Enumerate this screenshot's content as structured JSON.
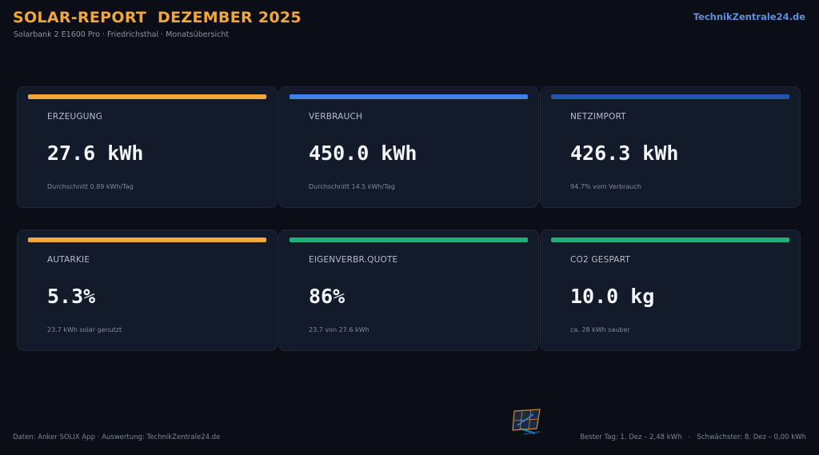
{
  "header": {
    "title": "SOLAR-REPORT  DEZEMBER 2025",
    "subtitle": "Solarbank 2 E1600 Pro · Friedrichsthal · Monatsübersicht",
    "brand": "TechnikZentrale24.de"
  },
  "cards": [
    {
      "label": "ERZEUGUNG",
      "value": "27.6 kWh",
      "note": "Durchschnitt 0.89 kWh/Tag",
      "accent": "#f2a73b"
    },
    {
      "label": "VERBRAUCH",
      "value": "450.0 kWh",
      "note": "Durchschnitt 14.5 kWh/Tag",
      "accent": "#3d82e6"
    },
    {
      "label": "NETZIMPORT",
      "value": "426.3 kWh",
      "note": "94.7% vom Verbrauch",
      "accent": "#2255b0"
    },
    {
      "label": "AUTARKIE",
      "value": "5.3%",
      "note": "23.7 kWh solar genutzt",
      "accent": "#f2a73b"
    },
    {
      "label": "EIGENVERBR.QUOTE",
      "value": "86%",
      "note": "23.7 von 27.6 kWh",
      "accent": "#1fb07a"
    },
    {
      "label": "CO2 GESPART",
      "value": "10.0 kg",
      "note": "ca. 28 kWh sauber",
      "accent": "#1fb07a"
    }
  ],
  "footer": {
    "source": "Daten: Anker SOLIX App · Auswertung: TechnikZentrale24.de",
    "stats": "Bester Tag: 1. Dez – 2,48 kWh   ·   Schwächster: 8. Dez – 0,00 kWh"
  },
  "colors": {
    "background": "#0b0e17",
    "card": "#131a2a",
    "title": "#f2a73b",
    "brand": "#5d8fe0"
  },
  "logo": {
    "icon": "solar-panel-logo-icon"
  }
}
